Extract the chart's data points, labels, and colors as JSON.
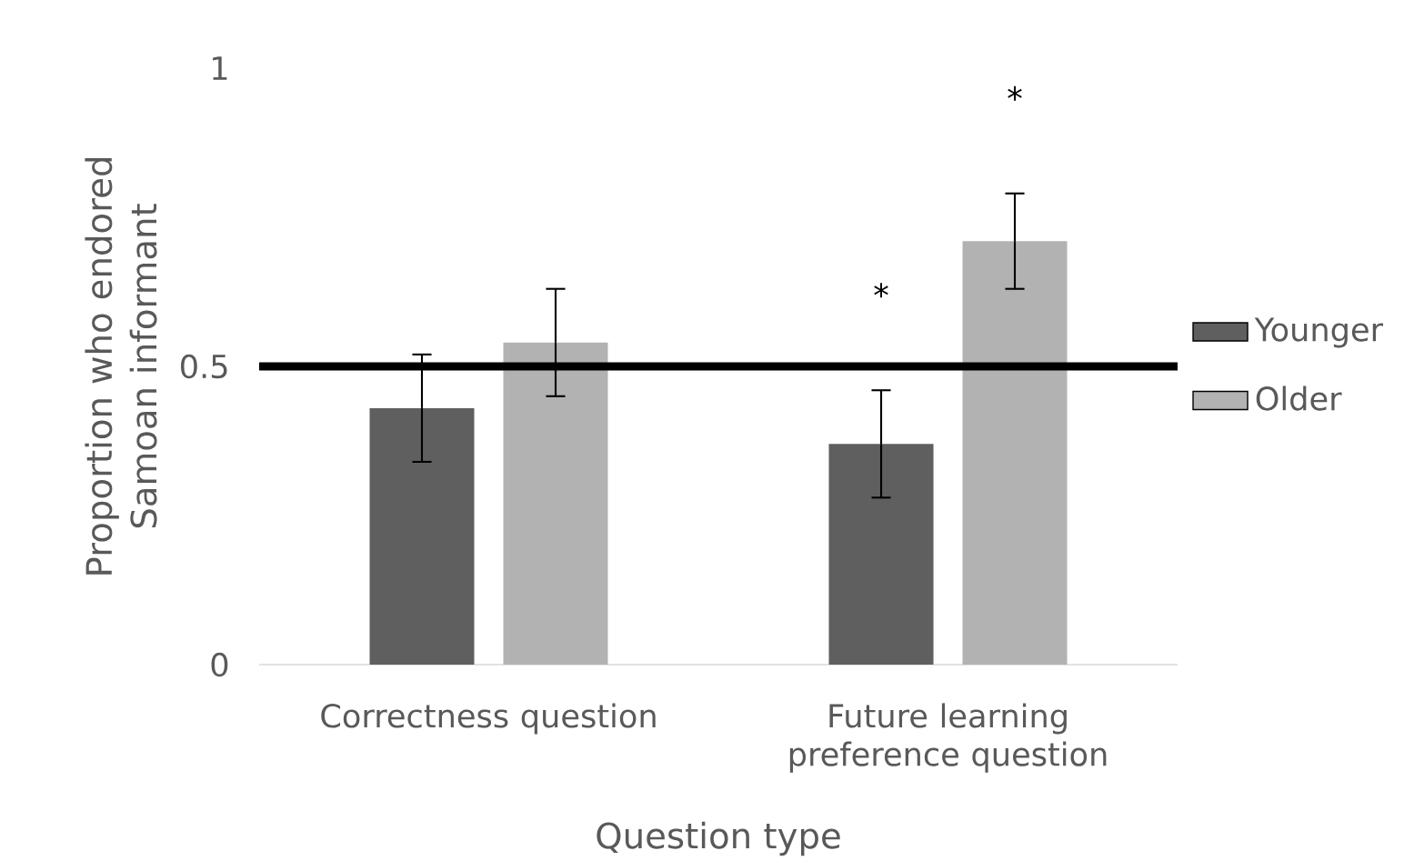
{
  "chart_data": {
    "type": "bar",
    "xlabel": "Question type",
    "ylabel": "Proportion who endored Samoan informant",
    "categories": [
      "Correctness question",
      "Future learning preference question"
    ],
    "series": [
      {
        "name": "Younger",
        "color": "#5f5f5f",
        "values": [
          0.43,
          0.37
        ],
        "errors": [
          0.09,
          0.09
        ]
      },
      {
        "name": "Older",
        "color": "#b2b2b2",
        "values": [
          0.54,
          0.71
        ],
        "errors": [
          0.09,
          0.08
        ]
      }
    ],
    "ylim": [
      0,
      1
    ],
    "yticks": [
      0,
      0.5,
      1
    ],
    "grid": false,
    "legend": "right",
    "ref_lines": [
      {
        "axis": "y",
        "value": 0.5,
        "color": "#000000"
      }
    ],
    "annotations": [
      "*",
      "*"
    ]
  }
}
